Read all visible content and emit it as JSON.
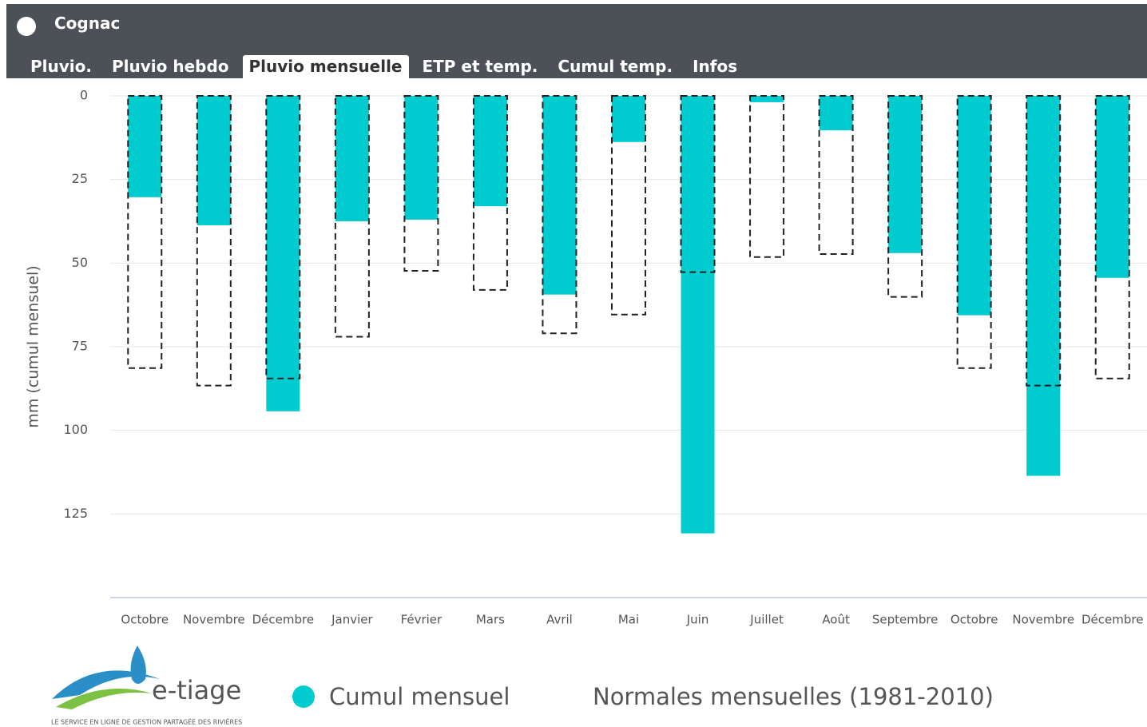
{
  "header": {
    "title": "Cognac",
    "tabs": [
      "Pluvio.",
      "Pluvio hebdo",
      "Pluvio mensuelle",
      "ETP et temp.",
      "Cumul temp.",
      "Infos"
    ],
    "active_tab": 2
  },
  "logo": {
    "name": "e-tiage",
    "tagline": "LE SERVICE EN LIGNE DE GESTION PARTAGÉE DES RIVIÈRES"
  },
  "chart_data": {
    "type": "bar",
    "y_label": "mm (cumul mensuel)",
    "y_inverted": true,
    "categories": [
      "Octobre",
      "Novembre",
      "Décembre",
      "Janvier",
      "Février",
      "Mars",
      "Avril",
      "Mai",
      "Juin",
      "Juillet",
      "Août",
      "Septembre",
      "Octobre",
      "Novembre",
      "Décembre"
    ],
    "series": [
      {
        "name": "Cumul mensuel",
        "color": "#00ccd0",
        "style": "filled",
        "values": [
          30.3,
          38.7,
          94.3,
          37.5,
          37,
          33,
          59.4,
          13.8,
          130.8,
          1.9,
          10.3,
          47,
          65.6,
          113.6,
          54.4
        ]
      },
      {
        "name": "Normales mensuelles (1981-2010)",
        "color": "#222222",
        "style": "dashed",
        "values": [
          81.4,
          86.6,
          84.5,
          72,
          52.3,
          58,
          71,
          65.4,
          52.7,
          48.2,
          47.3,
          60.1,
          81.4,
          86.6,
          84.5
        ]
      }
    ],
    "ylim": [
      0,
      150
    ],
    "yticks": [
      0,
      25,
      50,
      75,
      100,
      125
    ],
    "grid": true
  }
}
